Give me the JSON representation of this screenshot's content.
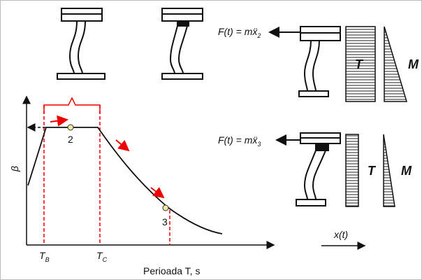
{
  "force_labels": [
    {
      "text": "F(t) = mẍ",
      "sub": "2"
    },
    {
      "text": "F(t) = mẍ",
      "sub": "3"
    }
  ],
  "diagram_labels": {
    "shear_top": "T",
    "moment_top": "M",
    "shear_bottom": "T",
    "moment_bottom": "M"
  },
  "graph": {
    "y_label": "β",
    "x_label": "Perioada T, s",
    "points": [
      "2",
      "3"
    ],
    "period_labels": [
      {
        "text": "T",
        "sub": "B"
      },
      {
        "text": "T",
        "sub": "C"
      }
    ]
  },
  "displacement_label": "x(t)"
}
